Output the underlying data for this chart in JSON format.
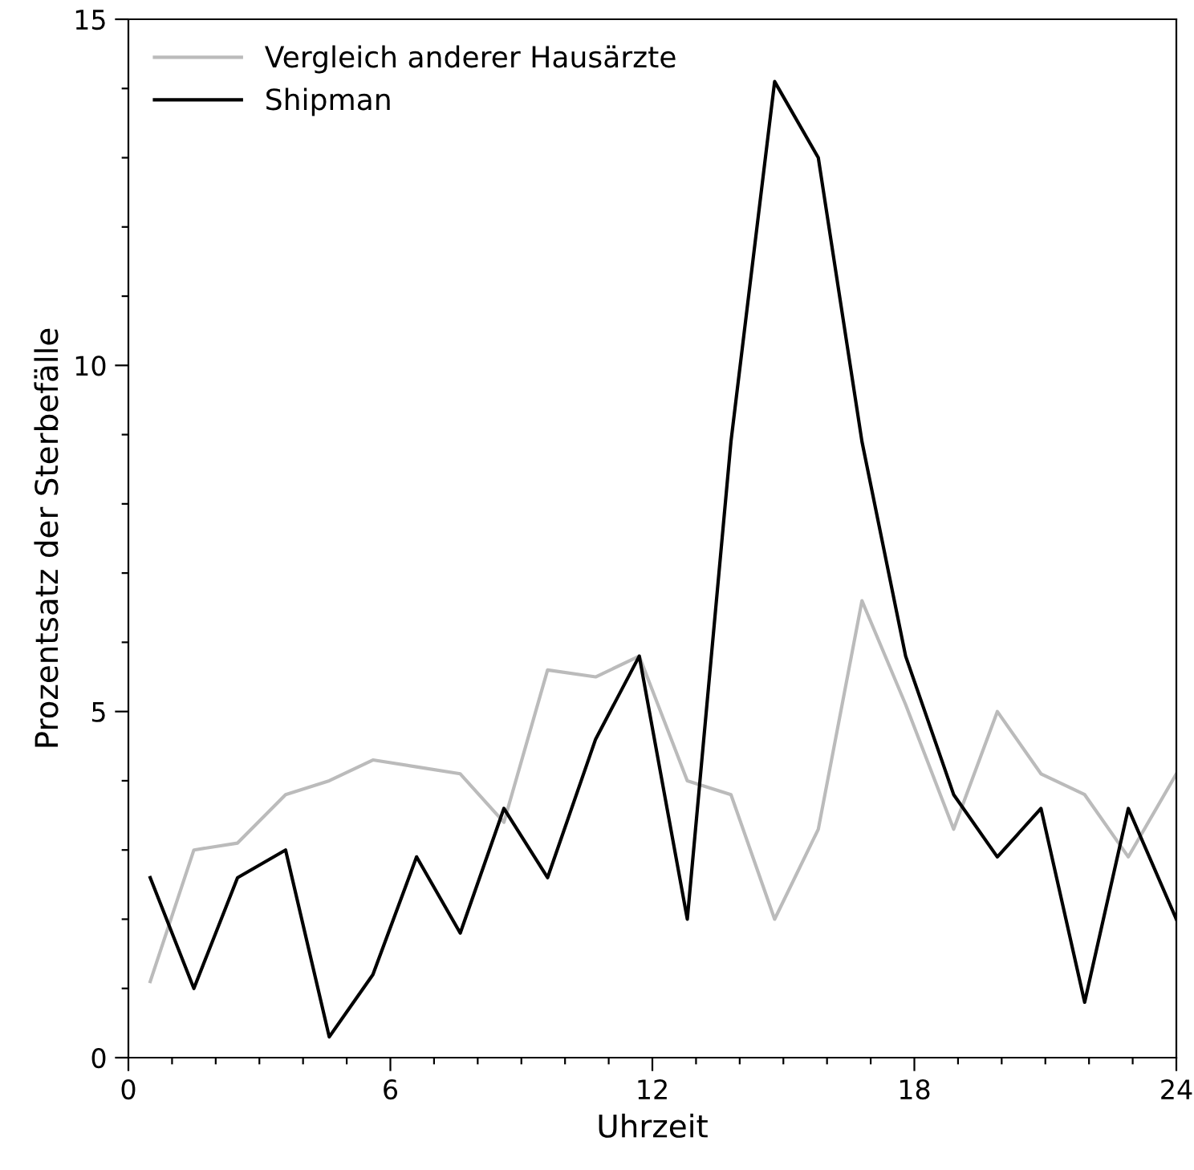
{
  "chart_data": {
    "type": "line",
    "xlabel": "Uhrzeit",
    "ylabel": "Prozentsatz der Sterbefälle",
    "x": [
      0.5,
      1.5,
      2.5,
      3.6,
      4.6,
      5.6,
      6.6,
      7.6,
      8.6,
      9.6,
      10.7,
      11.7,
      12.8,
      13.8,
      14.8,
      15.8,
      16.8,
      17.8,
      18.9,
      19.9,
      20.9,
      21.9,
      22.9,
      24
    ],
    "series": [
      {
        "name": "Vergleich anderer Hausärzte",
        "color": "#bbbbbb",
        "values": [
          1.1,
          3.0,
          3.1,
          3.8,
          4.0,
          4.3,
          4.2,
          4.1,
          3.4,
          5.6,
          5.5,
          5.8,
          4.0,
          3.8,
          2.0,
          3.3,
          6.6,
          5.1,
          3.3,
          5.0,
          4.1,
          3.8,
          2.9,
          4.1
        ]
      },
      {
        "name": "Shipman",
        "color": "#000000",
        "values": [
          2.6,
          1.0,
          2.6,
          3.0,
          0.3,
          1.2,
          2.9,
          1.8,
          3.6,
          2.6,
          4.6,
          5.8,
          2.0,
          8.9,
          14.1,
          13.0,
          8.9,
          5.8,
          3.8,
          2.9,
          3.6,
          0.8,
          3.6,
          2.0
        ]
      }
    ],
    "xlim": [
      0,
      24
    ],
    "ylim": [
      0,
      15
    ],
    "xticks": [
      0,
      {
        "value": 1,
        "label": null
      },
      {
        "value": 2,
        "label": null
      },
      {
        "value": 3,
        "label": null
      },
      {
        "value": 4,
        "label": null
      },
      {
        "value": 5,
        "label": null
      },
      6,
      {
        "value": 7,
        "label": null
      },
      {
        "value": 8,
        "label": null
      },
      {
        "value": 9,
        "label": null
      },
      {
        "value": 10,
        "label": null
      },
      {
        "value": 11,
        "label": null
      },
      12,
      {
        "value": 13,
        "label": null
      },
      {
        "value": 14,
        "label": null
      },
      {
        "value": 15,
        "label": null
      },
      {
        "value": 16,
        "label": null
      },
      {
        "value": 17,
        "label": null
      },
      18,
      {
        "value": 19,
        "label": null
      },
      {
        "value": 20,
        "label": null
      },
      {
        "value": 21,
        "label": null
      },
      {
        "value": 22,
        "label": null
      },
      {
        "value": 23,
        "label": null
      },
      24
    ],
    "yticks": [
      0,
      {
        "value": 1,
        "label": null
      },
      {
        "value": 2,
        "label": null
      },
      {
        "value": 3,
        "label": null
      },
      {
        "value": 4,
        "label": null
      },
      5,
      {
        "value": 6,
        "label": null
      },
      {
        "value": 7,
        "label": null
      },
      {
        "value": 8,
        "label": null
      },
      {
        "value": 9,
        "label": null
      },
      10,
      {
        "value": 11,
        "label": null
      },
      {
        "value": 12,
        "label": null
      },
      {
        "value": 13,
        "label": null
      },
      {
        "value": 14,
        "label": null
      },
      15
    ],
    "grid": false,
    "legend": "top left",
    "marker": "none",
    "line_style": "solid"
  }
}
